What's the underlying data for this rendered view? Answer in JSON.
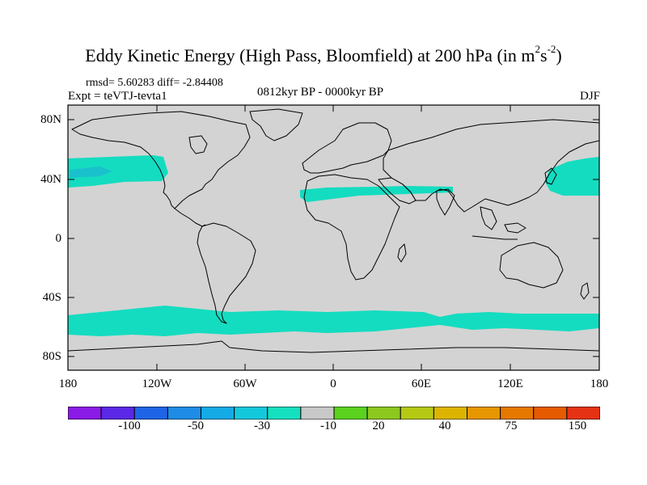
{
  "title": {
    "prefix": "Eddy Kinetic Energy (High Pass, Bloomfield) at 200 hPa (in m",
    "sup1": "2",
    "mid": "s",
    "sup2": "-2",
    "suffix": ")"
  },
  "stats": "rmsd= 5.60283 diff= -2.84408",
  "expt": "Expt = teVTJ-tevta1",
  "period": "0812kyr BP - 0000kyr BP",
  "season": "DJF",
  "lat_ticks": [
    "80N",
    "40N",
    "0",
    "40S",
    "80S"
  ],
  "lon_ticks": [
    "180",
    "120W",
    "60W",
    "0",
    "60E",
    "120E",
    "180"
  ],
  "legend": {
    "colors": [
      "#8a1ae6",
      "#5a28e6",
      "#1e64e6",
      "#1e8ce6",
      "#14aae6",
      "#14c8dc",
      "#14e0c0",
      "#c8c8c8",
      "#5ad21e",
      "#8cc81e",
      "#b4c814",
      "#dcb400",
      "#e69600",
      "#e67800",
      "#e65a00",
      "#e63214"
    ],
    "labels": [
      "-100",
      "-50",
      "-30",
      "-10",
      "20",
      "40",
      "75",
      "150"
    ]
  },
  "colors": {
    "land_sea": "#d3d3d3",
    "anomaly_band": "#14dcc0",
    "anomaly_core": "#1ea0dc"
  }
}
